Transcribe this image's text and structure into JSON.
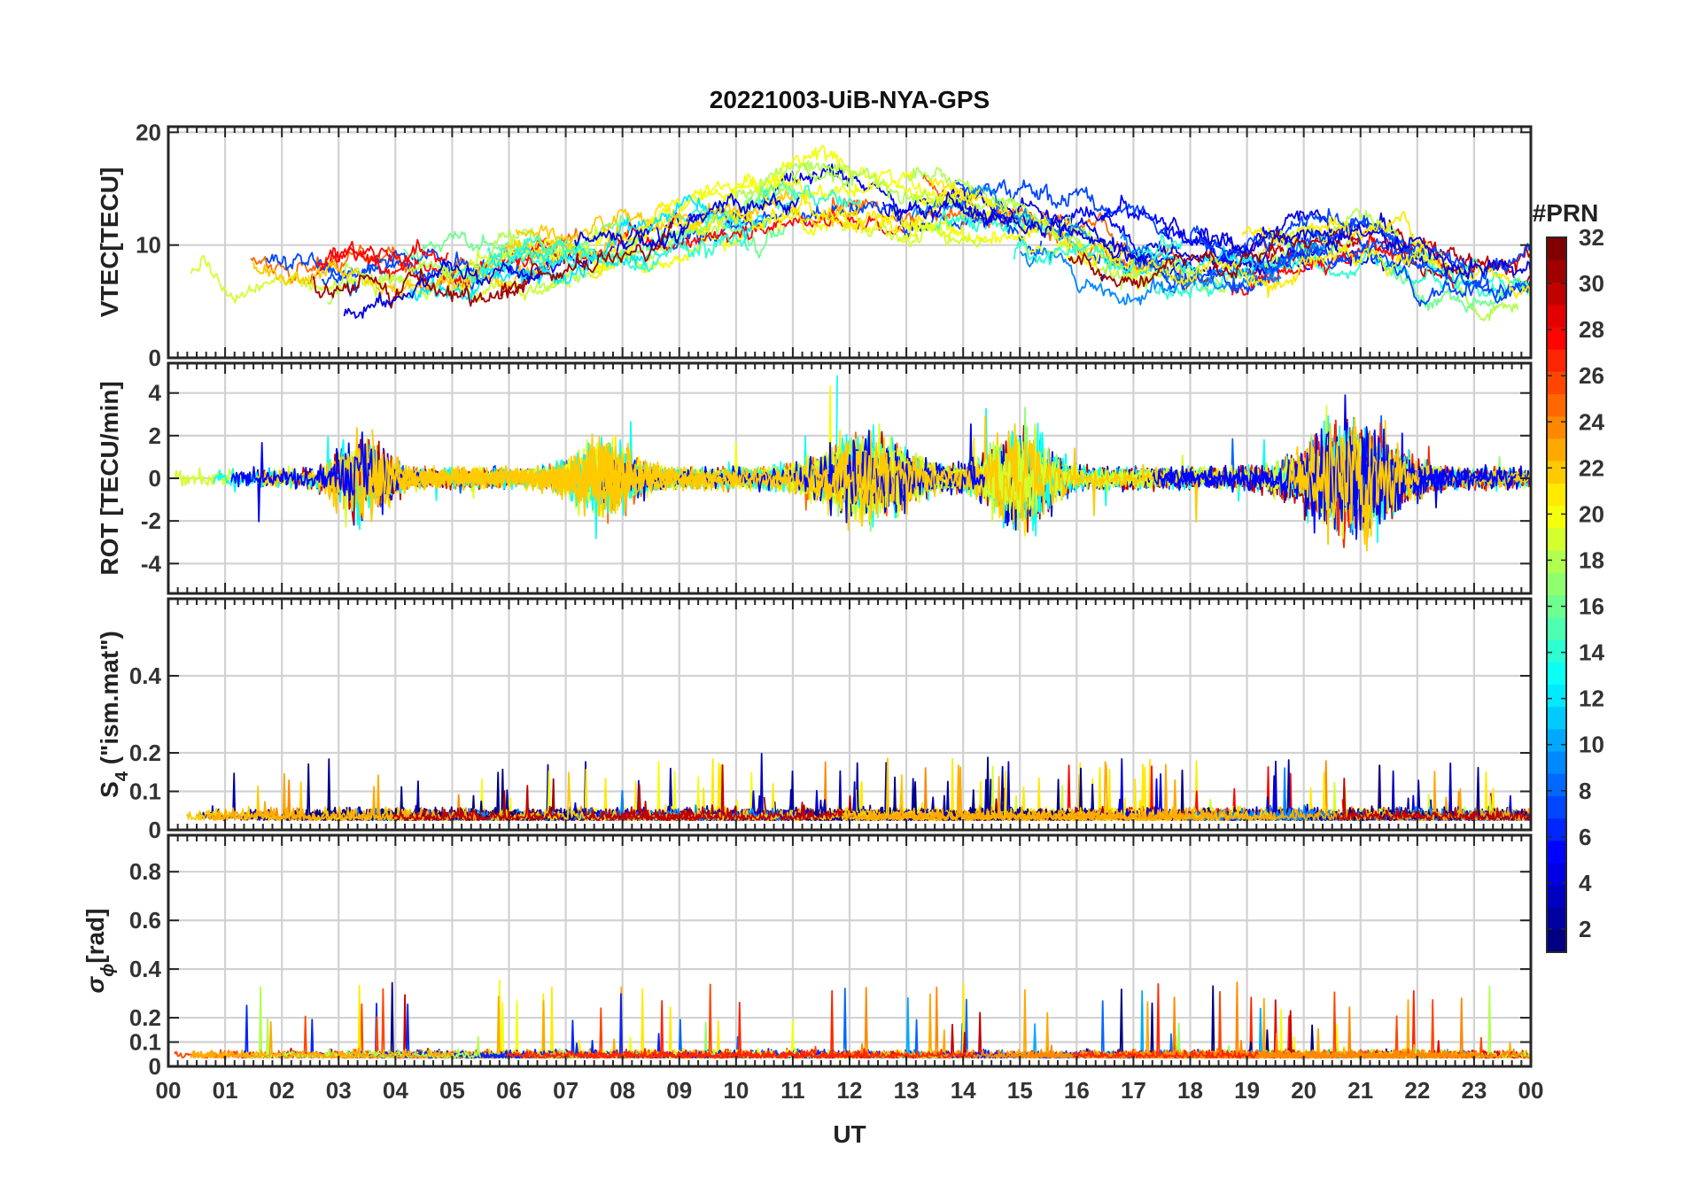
{
  "chart_data": {
    "type": "line",
    "title": "20221003-UiB-NYA-GPS",
    "xlabel": "UT",
    "x_ticks": [
      "00",
      "01",
      "02",
      "03",
      "04",
      "05",
      "06",
      "07",
      "08",
      "09",
      "10",
      "11",
      "12",
      "13",
      "14",
      "15",
      "16",
      "17",
      "18",
      "19",
      "20",
      "21",
      "22",
      "23",
      "00"
    ],
    "xlim_hours": [
      0,
      24
    ],
    "grid": true,
    "colorbar": {
      "label": "#PRN",
      "range": [
        1,
        32
      ],
      "ticks": [
        "2",
        "4",
        "6",
        "8",
        "10",
        "12",
        "14",
        "16",
        "18",
        "20",
        "22",
        "24",
        "26",
        "28",
        "30",
        "32"
      ],
      "colormap": "jet",
      "placement": "right"
    },
    "panels": [
      {
        "key": "vtec",
        "ylabel": "VTEC[TECU]",
        "ylim": [
          0,
          20.5
        ],
        "yticks": [
          0,
          10,
          20
        ],
        "ytick_labels": [
          "0",
          "10",
          "20"
        ],
        "description_of_traces": "per-PRN VTEC arcs between ~4 and ~20 TECU, higher (12-18) between 07 and 16 UT"
      },
      {
        "key": "rot",
        "ylabel": "ROT [TECU/min]",
        "ylim": [
          -5.4,
          5.4
        ],
        "yticks": [
          -4,
          -2,
          0,
          2,
          4
        ],
        "ytick_labels": [
          "-4",
          "-2",
          "0",
          "2",
          "4"
        ]
      },
      {
        "key": "s4",
        "ylabel": "S",
        "ylabel_sub": "4",
        "ylabel_suffix": " (\"ism.mat\")",
        "ylim": [
          0,
          0.6
        ],
        "yticks": [
          0,
          0.1,
          0.2,
          0.4
        ],
        "ytick_labels": [
          "0",
          "0.1",
          "0.2",
          "0.4"
        ]
      },
      {
        "key": "sigphi",
        "ylabel": "σ",
        "ylabel_sub": "ϕ",
        "ylabel_suffix": "[rad]",
        "ylim": [
          0,
          0.95
        ],
        "yticks": [
          0,
          0.1,
          0.2,
          0.4,
          0.6,
          0.8
        ],
        "ytick_labels": [
          "0",
          "0.1",
          "0.2",
          "0.4",
          "0.6",
          "0.8"
        ]
      }
    ]
  }
}
